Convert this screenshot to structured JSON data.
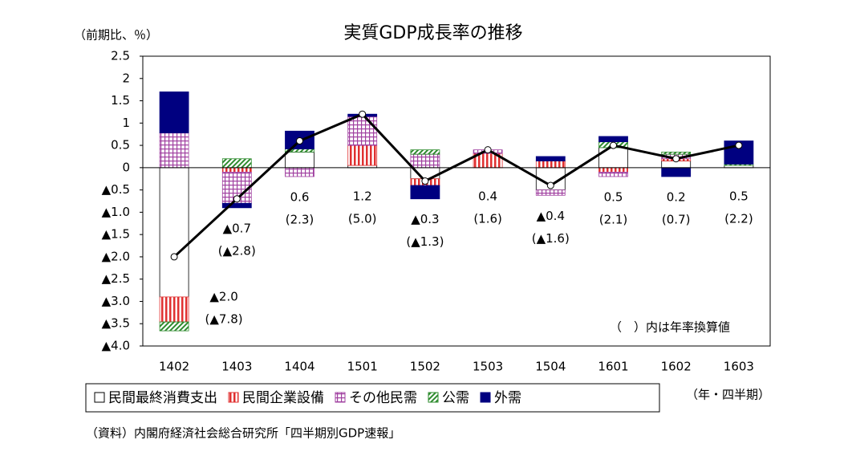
{
  "chart_data": {
    "type": "stacked-bar-line",
    "title": "実質GDP成長率の推移",
    "y_axis_label": "（前期比、％）",
    "x_axis_label": "（年・四半期）",
    "note": "（　）内は年率換算値",
    "source": "（資料）内閣府経済社会総合研究所「四半期別GDP速報」",
    "categories": [
      "1402",
      "1403",
      "1404",
      "1501",
      "1502",
      "1503",
      "1504",
      "1601",
      "1602",
      "1603"
    ],
    "ylim": [
      -4.0,
      2.5
    ],
    "yticks": [
      2.5,
      2.0,
      1.5,
      1.0,
      0.5,
      0.0,
      {
        "value": -0.5,
        "label": "▲0.5"
      },
      {
        "value": -1.0,
        "label": "▲1.0"
      },
      {
        "value": -1.5,
        "label": "▲1.5"
      },
      {
        "value": -2.0,
        "label": "▲2.0"
      },
      {
        "value": -2.5,
        "label": "▲2.5"
      },
      {
        "value": -3.0,
        "label": "▲3.0"
      },
      {
        "value": -3.5,
        "label": "▲3.5"
      },
      {
        "value": -4.0,
        "label": "▲4.0"
      }
    ],
    "series": [
      {
        "name": "民間最終消費支出",
        "color": "#ffffff",
        "pattern": "none",
        "values": [
          -2.9,
          0.0,
          0.35,
          0.05,
          -0.25,
          0.0,
          -0.5,
          0.45,
          0.15,
          0.05
        ]
      },
      {
        "name": "民間企業設備",
        "color": "#e03030",
        "pattern": "vertical",
        "values": [
          -0.56,
          -0.1,
          0.0,
          0.45,
          -0.15,
          0.32,
          0.15,
          -0.1,
          0.05,
          0.0
        ]
      },
      {
        "name": "その他民需",
        "color": "#a040a0",
        "pattern": "grid",
        "values": [
          0.78,
          -0.7,
          -0.2,
          0.65,
          0.3,
          0.08,
          -0.12,
          -0.1,
          0.1,
          0.0
        ]
      },
      {
        "name": "公需",
        "color": "#2e8b2e",
        "pattern": "diagonal",
        "values": [
          -0.2,
          0.2,
          0.07,
          0.0,
          0.1,
          0.0,
          0.0,
          0.13,
          0.05,
          0.03
        ]
      },
      {
        "name": "外需",
        "color": "#000080",
        "pattern": "solid",
        "values": [
          0.92,
          -0.1,
          0.4,
          0.05,
          -0.3,
          0.0,
          0.1,
          0.12,
          -0.2,
          0.52
        ]
      }
    ],
    "line": {
      "color": "#000000",
      "values": [
        -2.0,
        -0.7,
        0.6,
        1.2,
        -0.3,
        0.4,
        -0.4,
        0.5,
        0.2,
        0.5
      ],
      "value_labels": [
        "▲2.0",
        "▲0.7",
        "0.6",
        "1.2",
        "▲0.3",
        "0.4",
        "▲0.4",
        "0.5",
        "0.2",
        "0.5"
      ]
    },
    "annual_rate": {
      "values": [
        -7.8,
        -2.8,
        2.3,
        5.0,
        -1.3,
        1.6,
        -1.6,
        2.1,
        0.7,
        2.2
      ],
      "value_labels": [
        "(▲7.8)",
        "(▲2.8)",
        "(2.3)",
        "(5.0)",
        "(▲1.3)",
        "(1.6)",
        "(▲1.6)",
        "(2.1)",
        "(0.7)",
        "(2.2)"
      ]
    }
  }
}
